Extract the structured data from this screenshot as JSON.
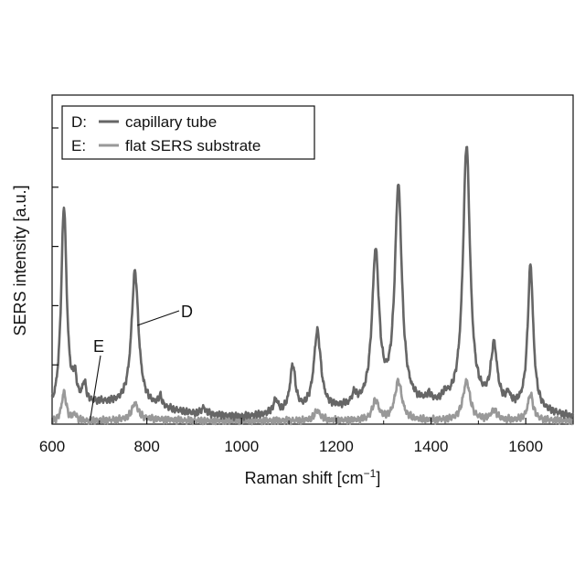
{
  "chart_data": {
    "type": "line",
    "xlabel_main": "Raman shift [cm",
    "xlabel_sup": "−1",
    "xlabel_end": "]",
    "ylabel": "SERS intensity [a.u.]",
    "xlim": [
      600,
      1700
    ],
    "ylim": [
      0,
      1.0
    ],
    "x_ticks": [
      600,
      800,
      1000,
      1200,
      1400,
      1600
    ],
    "x_tick_labels": [
      "600",
      "800",
      "1000",
      "1200",
      "1400",
      "1600"
    ],
    "y_ticks": [
      0.18,
      0.36,
      0.54,
      0.72,
      0.9
    ],
    "y_tick_labels": false,
    "grid": false,
    "legend": {
      "placement": "top-left",
      "entries": [
        {
          "prefix": "D:",
          "label": "capillary tube",
          "color": "#666666"
        },
        {
          "prefix": "E:",
          "label": "flat SERS substrate",
          "color": "#999999"
        }
      ]
    },
    "annotations": [
      {
        "text": "D",
        "points_to": [
          780,
          0.3
        ]
      },
      {
        "text": "E",
        "points_to": [
          680,
          0.01
        ]
      }
    ],
    "series": [
      {
        "key": "D",
        "color": "#666666",
        "baseline": [
          [
            600,
            0.03
          ],
          [
            700,
            0.06
          ],
          [
            800,
            0.05
          ],
          [
            900,
            0.03
          ],
          [
            1000,
            0.02
          ],
          [
            1100,
            0.03
          ],
          [
            1200,
            0.04
          ],
          [
            1300,
            0.05
          ],
          [
            1400,
            0.05
          ],
          [
            1500,
            0.05
          ],
          [
            1600,
            0.04
          ],
          [
            1700,
            0.02
          ]
        ],
        "peaks": [
          [
            625,
            0.62,
            7
          ],
          [
            648,
            0.07,
            5
          ],
          [
            668,
            0.06,
            5
          ],
          [
            775,
            0.41,
            9
          ],
          [
            828,
            0.03,
            5
          ],
          [
            920,
            0.02,
            5
          ],
          [
            1072,
            0.04,
            6
          ],
          [
            1108,
            0.14,
            7
          ],
          [
            1160,
            0.24,
            9
          ],
          [
            1238,
            0.03,
            6
          ],
          [
            1283,
            0.46,
            9
          ],
          [
            1331,
            0.66,
            9
          ],
          [
            1395,
            0.02,
            6
          ],
          [
            1430,
            0.02,
            6
          ],
          [
            1475,
            0.79,
            9
          ],
          [
            1533,
            0.18,
            8
          ],
          [
            1563,
            0.03,
            5
          ],
          [
            1610,
            0.44,
            7
          ]
        ]
      },
      {
        "key": "E",
        "color": "#999999",
        "baseline": [
          [
            600,
            0.005
          ],
          [
            700,
            0.01
          ],
          [
            800,
            0.015
          ],
          [
            900,
            0.01
          ],
          [
            1000,
            0.01
          ],
          [
            1100,
            0.01
          ],
          [
            1200,
            0.01
          ],
          [
            1300,
            0.01
          ],
          [
            1400,
            0.01
          ],
          [
            1500,
            0.01
          ],
          [
            1600,
            0.01
          ],
          [
            1700,
            0.01
          ]
        ],
        "peaks": [
          [
            625,
            0.09,
            6
          ],
          [
            648,
            0.02,
            5
          ],
          [
            775,
            0.05,
            8
          ],
          [
            1160,
            0.03,
            8
          ],
          [
            1283,
            0.06,
            8
          ],
          [
            1331,
            0.12,
            9
          ],
          [
            1475,
            0.12,
            9
          ],
          [
            1533,
            0.03,
            8
          ],
          [
            1610,
            0.08,
            7
          ]
        ]
      }
    ]
  }
}
